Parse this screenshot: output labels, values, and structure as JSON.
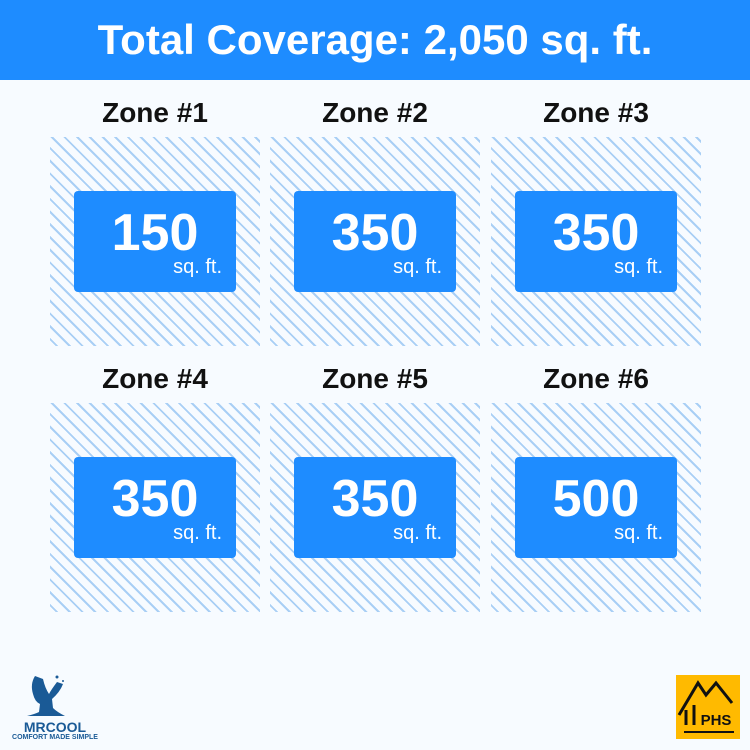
{
  "header": {
    "title": "Total Coverage: 2,050 sq. ft."
  },
  "zones": [
    {
      "label": "Zone #1",
      "value": "150",
      "unit": "sq. ft."
    },
    {
      "label": "Zone #2",
      "value": "350",
      "unit": "sq. ft."
    },
    {
      "label": "Zone #3",
      "value": "350",
      "unit": "sq. ft."
    },
    {
      "label": "Zone #4",
      "value": "350",
      "unit": "sq. ft."
    },
    {
      "label": "Zone #5",
      "value": "350",
      "unit": "sq. ft."
    },
    {
      "label": "Zone #6",
      "value": "500",
      "unit": "sq. ft."
    }
  ],
  "logos": {
    "mrcool": "MRCOOL",
    "mrcool_tagline": "COMFORT MADE SIMPLE",
    "phs": "PHS"
  },
  "colors": {
    "accent": "#1e8cff",
    "hatch": "#a9cff5",
    "phs_bg": "#ffba00"
  }
}
